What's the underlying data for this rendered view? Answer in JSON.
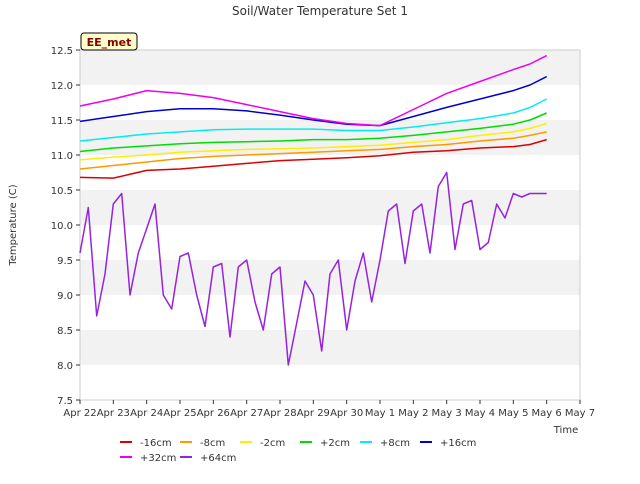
{
  "chart_data": {
    "type": "line",
    "title": "Soil/Water Temperature Set 1",
    "xlabel": "Time",
    "ylabel": "Temperature (C)",
    "site_label": "EE_met",
    "x_ticks": [
      "Apr 22",
      "Apr 23",
      "Apr 24",
      "Apr 25",
      "Apr 26",
      "Apr 27",
      "Apr 28",
      "Apr 29",
      "Apr 30",
      "May 1",
      "May 2",
      "May 3",
      "May 4",
      "May 5",
      "May 6",
      "May 7"
    ],
    "xlim_days": [
      0,
      15
    ],
    "ylim": [
      7.5,
      12.5
    ],
    "y_ticks": [
      "7.5",
      "8.0",
      "8.5",
      "9.0",
      "9.5",
      "10.0",
      "10.5",
      "11.0",
      "11.5",
      "12.0",
      "12.5"
    ],
    "grid": "horizontal alternating bands",
    "legend_position": "bottom",
    "series": [
      {
        "name": "-16cm",
        "color": "#dd0000",
        "x": [
          0,
          1,
          2,
          3,
          4,
          5,
          6,
          7,
          8,
          9,
          10,
          11,
          12,
          13,
          13.5,
          14
        ],
        "y": [
          10.68,
          10.67,
          10.78,
          10.8,
          10.84,
          10.88,
          10.92,
          10.94,
          10.96,
          10.99,
          11.04,
          11.06,
          11.1,
          11.12,
          11.15,
          11.22
        ]
      },
      {
        "name": "-8cm",
        "color": "#ff9900",
        "x": [
          0,
          1,
          2,
          3,
          4,
          5,
          6,
          7,
          8,
          9,
          10,
          11,
          12,
          13,
          13.5,
          14
        ],
        "y": [
          10.8,
          10.85,
          10.9,
          10.95,
          10.98,
          11.0,
          11.02,
          11.04,
          11.06,
          11.08,
          11.12,
          11.15,
          11.2,
          11.24,
          11.28,
          11.33
        ]
      },
      {
        "name": "-2cm",
        "color": "#ffee00",
        "x": [
          0,
          1,
          2,
          3,
          4,
          5,
          6,
          7,
          8,
          9,
          10,
          11,
          12,
          13,
          13.5,
          14
        ],
        "y": [
          10.93,
          10.97,
          11.0,
          11.04,
          11.06,
          11.08,
          11.09,
          11.1,
          11.12,
          11.14,
          11.18,
          11.22,
          11.28,
          11.33,
          11.38,
          11.45
        ]
      },
      {
        "name": "+2cm",
        "color": "#00dd00",
        "x": [
          0,
          1,
          2,
          3,
          4,
          5,
          6,
          7,
          8,
          9,
          10,
          11,
          12,
          13,
          13.5,
          14
        ],
        "y": [
          11.05,
          11.1,
          11.13,
          11.16,
          11.18,
          11.19,
          11.2,
          11.22,
          11.22,
          11.24,
          11.28,
          11.33,
          11.38,
          11.44,
          11.5,
          11.6
        ]
      },
      {
        "name": "+8cm",
        "color": "#00eeee",
        "x": [
          0,
          1,
          2,
          3,
          4,
          5,
          6,
          7,
          8,
          9,
          10,
          11,
          12,
          13,
          13.5,
          14
        ],
        "y": [
          11.2,
          11.25,
          11.3,
          11.33,
          11.36,
          11.37,
          11.37,
          11.37,
          11.35,
          11.35,
          11.4,
          11.46,
          11.52,
          11.6,
          11.68,
          11.8
        ]
      },
      {
        "name": "+16cm",
        "color": "#0000cc",
        "x": [
          0,
          1,
          2,
          3,
          4,
          5,
          6,
          7,
          8,
          9,
          10,
          11,
          12,
          13,
          13.5,
          14
        ],
        "y": [
          11.48,
          11.55,
          11.62,
          11.66,
          11.66,
          11.63,
          11.57,
          11.5,
          11.44,
          11.42,
          11.55,
          11.68,
          11.8,
          11.92,
          12.0,
          12.12
        ]
      },
      {
        "name": "+32cm",
        "color": "#ee00ee",
        "x": [
          0,
          1,
          2,
          3,
          4,
          5,
          6,
          7,
          8,
          9,
          10,
          11,
          12,
          13,
          13.5,
          14
        ],
        "y": [
          11.7,
          11.8,
          11.92,
          11.88,
          11.82,
          11.72,
          11.62,
          11.52,
          11.45,
          11.42,
          11.65,
          11.88,
          12.05,
          12.22,
          12.3,
          12.42
        ]
      },
      {
        "name": "+64cm",
        "color": "#9922dd",
        "x": [
          0,
          0.25,
          0.5,
          0.75,
          1.0,
          1.25,
          1.5,
          1.75,
          2.0,
          2.25,
          2.5,
          2.75,
          3.0,
          3.25,
          3.5,
          3.75,
          4.0,
          4.25,
          4.5,
          4.75,
          5.0,
          5.25,
          5.5,
          5.75,
          6.0,
          6.25,
          6.5,
          6.75,
          7.0,
          7.25,
          7.5,
          7.75,
          8.0,
          8.25,
          8.5,
          8.75,
          9.0,
          9.25,
          9.5,
          9.75,
          10.0,
          10.25,
          10.5,
          10.75,
          11.0,
          11.25,
          11.5,
          11.75,
          12.0,
          12.25,
          12.5,
          12.75,
          13.0,
          13.25,
          13.5,
          13.75,
          14.0
        ],
        "y": [
          9.6,
          10.25,
          8.7,
          9.3,
          10.3,
          10.45,
          9.0,
          9.6,
          9.95,
          10.3,
          9.0,
          8.8,
          9.55,
          9.6,
          9.0,
          8.55,
          9.4,
          9.45,
          8.4,
          9.4,
          9.5,
          8.9,
          8.5,
          9.3,
          9.4,
          8.0,
          8.6,
          9.2,
          9.0,
          8.2,
          9.3,
          9.5,
          8.5,
          9.2,
          9.6,
          8.9,
          9.5,
          10.2,
          10.3,
          9.45,
          10.2,
          10.3,
          9.6,
          10.55,
          10.75,
          9.65,
          10.3,
          10.35,
          9.65,
          9.75,
          10.3,
          10.1,
          10.45,
          10.4,
          10.45,
          10.45,
          10.45
        ]
      }
    ]
  }
}
